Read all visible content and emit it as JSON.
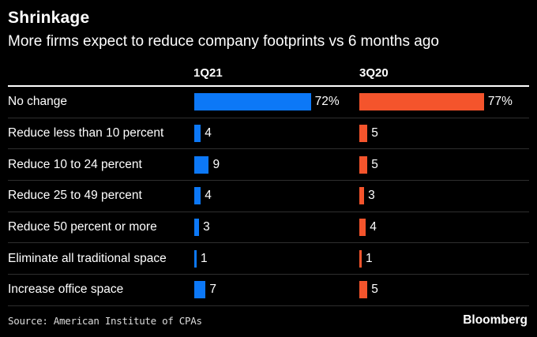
{
  "header": {
    "title": "Shrinkage",
    "subtitle": "More firms expect to reduce company footprints vs 6 months ago"
  },
  "columns": [
    "1Q21",
    "3Q20"
  ],
  "chart_data": {
    "type": "bar",
    "orientation": "horizontal",
    "title": "Shrinkage",
    "subtitle": "More firms expect to reduce company footprints vs 6 months ago",
    "categories": [
      "No change",
      "Reduce less than 10 percent",
      "Reduce 10 to 24 percent",
      "Reduce 25 to 49 percent",
      "Reduce 50 percent or more",
      "Eliminate all traditional space",
      "Increase office space"
    ],
    "series": [
      {
        "name": "1Q21",
        "color": "#0C78F7",
        "values": [
          72,
          4,
          9,
          4,
          3,
          1,
          7
        ],
        "labels": [
          "72%",
          "4",
          "9",
          "4",
          "3",
          "1",
          "7"
        ]
      },
      {
        "name": "3Q20",
        "color": "#F4542C",
        "values": [
          77,
          5,
          5,
          3,
          4,
          1,
          5
        ],
        "labels": [
          "77%",
          "5",
          "5",
          "3",
          "4",
          "1",
          "5"
        ]
      }
    ],
    "xlim": [
      0,
      100
    ],
    "grid": false,
    "legend_position": "column-headers-top",
    "value_labels": "outside-end"
  },
  "footer": {
    "source": "Source: American Institute of CPAs",
    "brand": "Bloomberg"
  },
  "colors": {
    "background": "#000000",
    "text": "#ffffff",
    "bar_blue": "#0C78F7",
    "bar_orange": "#F4542C",
    "separator": "#2e2e2e",
    "top_rule": "#ffffff"
  }
}
